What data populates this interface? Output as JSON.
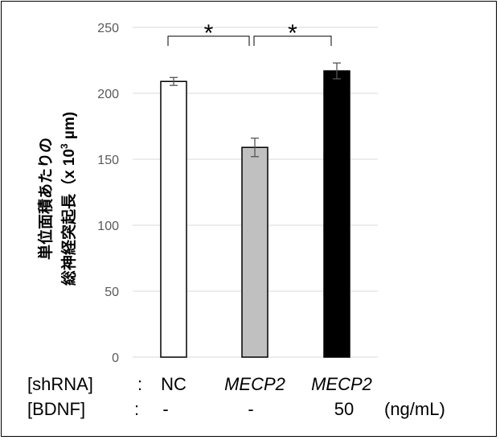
{
  "chart_data": {
    "type": "bar",
    "ylim": [
      0,
      250
    ],
    "yticks": [
      0,
      50,
      100,
      150,
      200,
      250
    ],
    "ylabel_line1": "単位面積あたりの",
    "ylabel_line2": "総神経突起長（x 10",
    "ylabel_sup": "3",
    "ylabel_unit": " µm)",
    "grid": true,
    "legend": "none",
    "bars": [
      {
        "value": 209,
        "error": 3,
        "color": "#ffffff"
      },
      {
        "value": 159,
        "error": 7,
        "color": "#c0c0c0"
      },
      {
        "value": 217,
        "error": 6,
        "color": "#000000"
      }
    ],
    "significance": [
      {
        "from": 0,
        "to": 1,
        "label": "*"
      },
      {
        "from": 1,
        "to": 2,
        "label": "*"
      }
    ],
    "conditions": {
      "shrna_label": "[shRNA]",
      "shrna_colon": ":",
      "shrna_values": [
        "NC",
        "MECP2",
        "MECP2"
      ],
      "bdnf_label": "[BDNF]",
      "bdnf_colon": ":",
      "bdnf_values": [
        "-",
        "-",
        "50"
      ],
      "bdnf_unit": "(ng/mL)"
    }
  }
}
